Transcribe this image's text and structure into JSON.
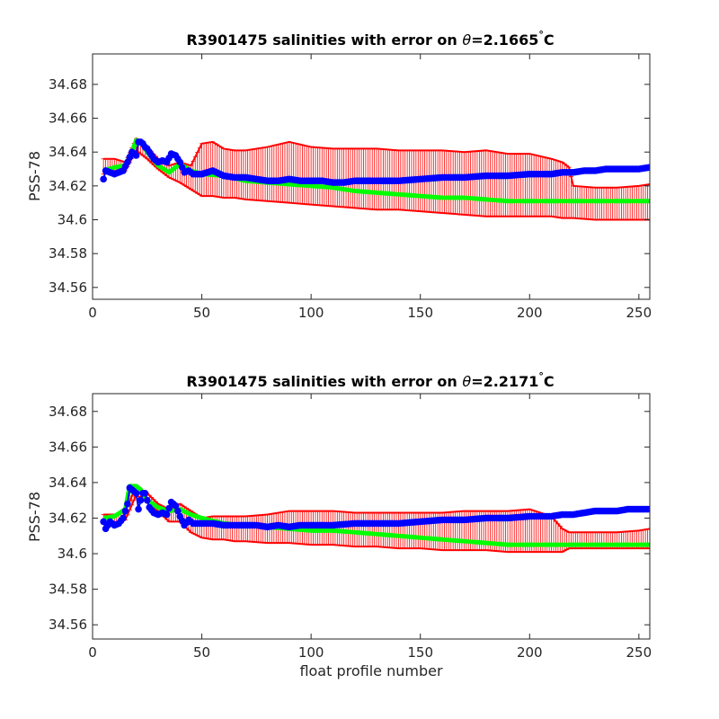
{
  "colors": {
    "axis": "#262626",
    "error_bars": "#ff0000",
    "original_series": "#0000ff",
    "calibrated_series": "#00ff00"
  },
  "chart_data": [
    {
      "type": "line",
      "title_prefix": "R3901475 salinities with error on ",
      "title_theta": "θ",
      "title_suffix": "=2.1665",
      "title_degree": "°",
      "title_unit": "C",
      "xlabel": "",
      "ylabel": "PSS-78",
      "xlim": [
        0,
        255
      ],
      "ylim": [
        34.553,
        34.698
      ],
      "xticks": [
        0,
        50,
        100,
        150,
        200,
        250
      ],
      "yticks": [
        34.56,
        34.58,
        34.6,
        34.62,
        34.64,
        34.66,
        34.68
      ],
      "ytick_labels": [
        "34.56",
        "34.58",
        "34.6",
        "34.62",
        "34.64",
        "34.66",
        "34.68"
      ],
      "grid": false,
      "blue_x": [
        5,
        6,
        8,
        10,
        12,
        14,
        16,
        18,
        20,
        21,
        22,
        23,
        24,
        25,
        26,
        28,
        30,
        32,
        34,
        36,
        38,
        40,
        42,
        44,
        46,
        50,
        55,
        60,
        65,
        70,
        75,
        80,
        85,
        90,
        95,
        100,
        105,
        110,
        115,
        120,
        125,
        130,
        140,
        150,
        160,
        170,
        180,
        190,
        200,
        210,
        215,
        220,
        225,
        230,
        235,
        240,
        245,
        250,
        255
      ],
      "blue_y": [
        34.624,
        34.629,
        34.628,
        34.627,
        34.628,
        34.629,
        34.634,
        34.64,
        34.638,
        34.646,
        34.646,
        34.645,
        34.643,
        34.642,
        34.64,
        34.636,
        34.634,
        34.635,
        34.634,
        34.639,
        34.638,
        34.634,
        34.628,
        34.629,
        34.627,
        34.627,
        34.629,
        34.626,
        34.625,
        34.625,
        34.624,
        34.623,
        34.623,
        34.624,
        34.623,
        34.623,
        34.623,
        34.622,
        34.622,
        34.623,
        34.623,
        34.623,
        34.623,
        34.624,
        34.625,
        34.625,
        34.626,
        34.626,
        34.627,
        34.627,
        34.628,
        34.628,
        34.629,
        34.629,
        34.63,
        34.63,
        34.63,
        34.63,
        34.631
      ],
      "green_x": [
        5,
        10,
        15,
        18,
        20,
        22,
        25,
        30,
        35,
        40,
        45,
        50,
        60,
        70,
        80,
        90,
        100,
        110,
        120,
        130,
        140,
        150,
        160,
        170,
        180,
        190,
        200,
        210,
        217,
        220,
        230,
        240,
        250,
        255
      ],
      "green_y": [
        34.629,
        34.631,
        34.632,
        34.64,
        34.647,
        34.646,
        34.64,
        34.632,
        34.628,
        34.633,
        34.629,
        34.627,
        34.626,
        34.623,
        34.622,
        34.621,
        34.62,
        34.619,
        34.617,
        34.616,
        34.615,
        34.614,
        34.613,
        34.613,
        34.612,
        34.611,
        34.611,
        34.611,
        34.611,
        34.611,
        34.611,
        34.611,
        34.611,
        34.611
      ],
      "band_x": [
        5,
        10,
        15,
        20,
        25,
        30,
        35,
        40,
        45,
        50,
        55,
        60,
        65,
        70,
        80,
        90,
        100,
        110,
        120,
        130,
        140,
        150,
        160,
        170,
        180,
        190,
        200,
        210,
        215,
        218,
        220,
        230,
        240,
        250,
        255
      ],
      "band_upper": [
        34.636,
        34.636,
        34.634,
        34.648,
        34.643,
        34.636,
        34.632,
        34.634,
        34.632,
        34.645,
        34.646,
        34.642,
        34.641,
        34.641,
        34.643,
        34.646,
        34.643,
        34.642,
        34.642,
        34.642,
        34.641,
        34.641,
        34.641,
        34.64,
        34.641,
        34.639,
        34.639,
        34.636,
        34.634,
        34.631,
        34.62,
        34.619,
        34.619,
        34.62,
        34.621
      ],
      "band_lower": [
        34.627,
        34.628,
        34.629,
        34.641,
        34.636,
        34.63,
        34.625,
        34.622,
        34.618,
        34.614,
        34.614,
        34.613,
        34.613,
        34.612,
        34.611,
        34.61,
        34.609,
        34.608,
        34.607,
        34.606,
        34.606,
        34.605,
        34.604,
        34.603,
        34.602,
        34.602,
        34.602,
        34.602,
        34.601,
        34.601,
        34.601,
        34.6,
        34.6,
        34.6,
        34.6
      ]
    },
    {
      "type": "line",
      "title_prefix": "R3901475 salinities with error on ",
      "title_theta": "θ",
      "title_suffix": "=2.2171",
      "title_degree": "°",
      "title_unit": "C",
      "xlabel": "float profile number",
      "ylabel": "PSS-78",
      "xlim": [
        0,
        255
      ],
      "ylim": [
        34.552,
        34.69
      ],
      "xticks": [
        0,
        50,
        100,
        150,
        200,
        250
      ],
      "yticks": [
        34.56,
        34.58,
        34.6,
        34.62,
        34.64,
        34.66,
        34.68
      ],
      "ytick_labels": [
        "34.56",
        "34.58",
        "34.6",
        "34.62",
        "34.64",
        "34.66",
        "34.68"
      ],
      "grid": false,
      "blue_x": [
        5,
        6,
        8,
        10,
        12,
        14,
        16,
        17,
        18,
        20,
        21,
        22,
        23,
        24,
        25,
        26,
        28,
        30,
        32,
        34,
        36,
        38,
        40,
        42,
        44,
        46,
        50,
        55,
        60,
        65,
        70,
        75,
        80,
        85,
        90,
        95,
        100,
        110,
        120,
        130,
        140,
        150,
        160,
        170,
        180,
        190,
        200,
        210,
        215,
        220,
        225,
        230,
        235,
        240,
        245,
        250,
        255
      ],
      "blue_y": [
        34.618,
        34.614,
        34.618,
        34.616,
        34.617,
        34.62,
        34.628,
        34.637,
        34.636,
        34.634,
        34.625,
        34.63,
        34.634,
        34.634,
        34.63,
        34.626,
        34.623,
        34.622,
        34.623,
        34.622,
        34.629,
        34.627,
        34.621,
        34.616,
        34.619,
        34.617,
        34.617,
        34.617,
        34.616,
        34.616,
        34.616,
        34.616,
        34.615,
        34.616,
        34.615,
        34.616,
        34.616,
        34.616,
        34.617,
        34.617,
        34.617,
        34.618,
        34.619,
        34.619,
        34.62,
        34.62,
        34.621,
        34.621,
        34.622,
        34.622,
        34.623,
        34.624,
        34.624,
        34.624,
        34.625,
        34.625,
        34.625
      ],
      "green_x": [
        5,
        10,
        15,
        17,
        20,
        22,
        25,
        30,
        35,
        40,
        45,
        50,
        60,
        70,
        80,
        90,
        100,
        110,
        120,
        130,
        140,
        150,
        160,
        170,
        180,
        190,
        200,
        210,
        217,
        220,
        230,
        240,
        250,
        255
      ],
      "green_y": [
        34.62,
        34.621,
        34.625,
        34.638,
        34.638,
        34.636,
        34.63,
        34.626,
        34.624,
        34.625,
        34.622,
        34.62,
        34.617,
        34.616,
        34.615,
        34.614,
        34.613,
        34.613,
        34.612,
        34.611,
        34.61,
        34.609,
        34.608,
        34.607,
        34.606,
        34.605,
        34.605,
        34.605,
        34.605,
        34.605,
        34.605,
        34.605,
        34.605,
        34.605
      ],
      "band_x": [
        5,
        10,
        15,
        20,
        25,
        30,
        35,
        40,
        45,
        50,
        55,
        60,
        65,
        70,
        80,
        90,
        100,
        110,
        120,
        130,
        140,
        150,
        160,
        170,
        180,
        190,
        200,
        210,
        215,
        218,
        220,
        230,
        240,
        250,
        255
      ],
      "band_upper": [
        34.622,
        34.622,
        34.624,
        34.638,
        34.634,
        34.628,
        34.625,
        34.628,
        34.624,
        34.62,
        34.621,
        34.621,
        34.621,
        34.621,
        34.622,
        34.624,
        34.624,
        34.624,
        34.623,
        34.623,
        34.623,
        34.623,
        34.623,
        34.624,
        34.624,
        34.624,
        34.625,
        34.621,
        34.614,
        34.612,
        34.612,
        34.612,
        34.612,
        34.613,
        34.614
      ],
      "band_lower": [
        34.617,
        34.617,
        34.619,
        34.633,
        34.629,
        34.624,
        34.618,
        34.618,
        34.612,
        34.609,
        34.608,
        34.608,
        34.607,
        34.607,
        34.606,
        34.606,
        34.605,
        34.605,
        34.604,
        34.604,
        34.603,
        34.603,
        34.602,
        34.602,
        34.602,
        34.601,
        34.601,
        34.601,
        34.601,
        34.603,
        34.603,
        34.603,
        34.603,
        34.603,
        34.603
      ],
      "errbar_half": 0.009
    }
  ]
}
